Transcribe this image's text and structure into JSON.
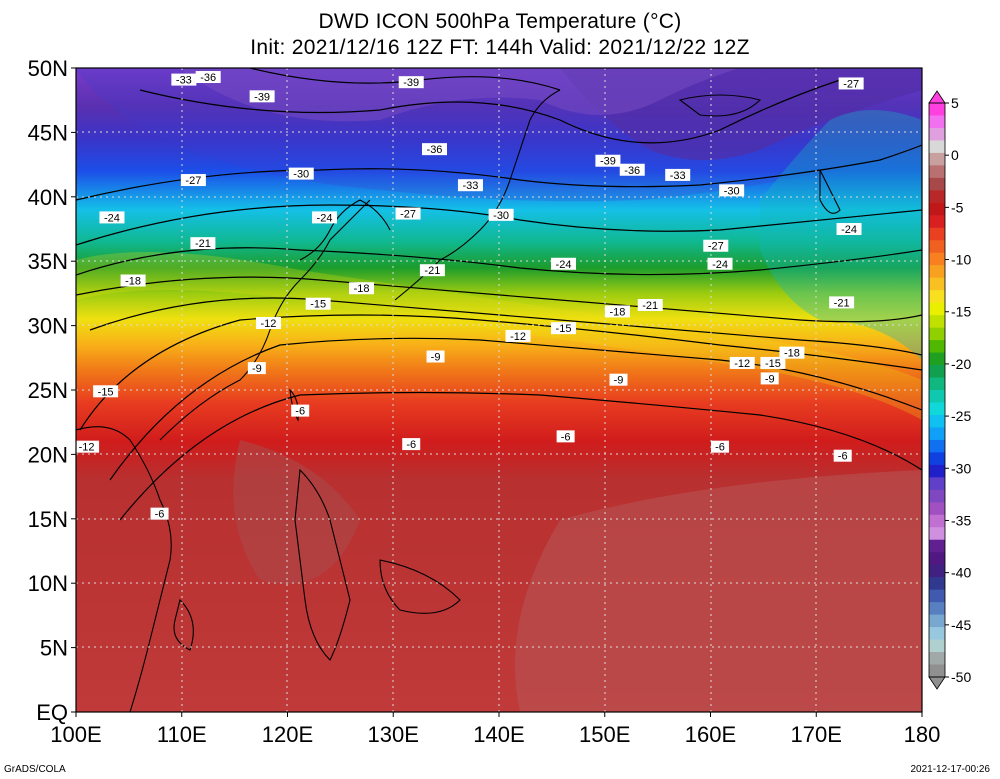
{
  "title": {
    "line1": "DWD ICON 500hPa Temperature (°C)",
    "line2": "Init: 2021/12/16 12Z  FT: 144h  Valid: 2021/12/22 12Z"
  },
  "footer": {
    "left": "GrADS/COLA",
    "right": "2021-12-17-00:26"
  },
  "axes": {
    "lat_labels": [
      "EQ",
      "5N",
      "10N",
      "15N",
      "20N",
      "25N",
      "30N",
      "35N",
      "40N",
      "45N",
      "50N"
    ],
    "lon_labels": [
      "100E",
      "110E",
      "120E",
      "130E",
      "140E",
      "150E",
      "160E",
      "170E",
      "180"
    ]
  },
  "colorbar": {
    "labels": [
      "5",
      "0",
      "-5",
      "-10",
      "-15",
      "-20",
      "-25",
      "-30",
      "-35",
      "-40",
      "-45",
      "-50"
    ],
    "colors": [
      "#ff40e0",
      "#f070f0",
      "#e0a0e0",
      "#d8d8d8",
      "#c8a0a0",
      "#b87070",
      "#a84848",
      "#b82828",
      "#c01818",
      "#d82020",
      "#e84020",
      "#f06020",
      "#f88020",
      "#f8a020",
      "#f8c020",
      "#f8e020",
      "#e8f000",
      "#c0e000",
      "#90d000",
      "#50b800",
      "#20a020",
      "#10a050",
      "#10b880",
      "#10c8b0",
      "#10d8d8",
      "#10c0f0",
      "#10a0f8",
      "#1070f0",
      "#1040e0",
      "#2020c8",
      "#6040c8",
      "#8048c0",
      "#a050c0",
      "#c070d0",
      "#d090e0",
      "#602090",
      "#501880",
      "#402080",
      "#303890",
      "#405ab0",
      "#5880c0",
      "#78a8d0",
      "#98c8e0",
      "#b0d0d0",
      "#a0a8a8",
      "#909090"
    ]
  },
  "contour_labels": [
    {
      "text": "-33",
      "lon": 110.2,
      "lat": 49.1
    },
    {
      "text": "-36",
      "lon": 112.5,
      "lat": 49.3
    },
    {
      "text": "-39",
      "lon": 131.7,
      "lat": 48.9
    },
    {
      "text": "-39",
      "lon": 117.6,
      "lat": 47.8
    },
    {
      "text": "-27",
      "lon": 173.3,
      "lat": 48.8
    },
    {
      "text": "-36",
      "lon": 133.9,
      "lat": 43.7
    },
    {
      "text": "-39",
      "lon": 150.3,
      "lat": 42.8
    },
    {
      "text": "-36",
      "lon": 152.6,
      "lat": 42.1
    },
    {
      "text": "-33",
      "lon": 156.9,
      "lat": 41.7
    },
    {
      "text": "-30",
      "lon": 121.3,
      "lat": 41.8
    },
    {
      "text": "-33",
      "lon": 137.3,
      "lat": 40.9
    },
    {
      "text": "-30",
      "lon": 162.0,
      "lat": 40.5
    },
    {
      "text": "-27",
      "lon": 111.1,
      "lat": 41.3
    },
    {
      "text": "-30",
      "lon": 140.2,
      "lat": 38.6
    },
    {
      "text": "-27",
      "lon": 131.4,
      "lat": 38.7
    },
    {
      "text": "-24",
      "lon": 103.4,
      "lat": 38.4
    },
    {
      "text": "-24",
      "lon": 123.5,
      "lat": 38.4
    },
    {
      "text": "-24",
      "lon": 173.1,
      "lat": 37.5
    },
    {
      "text": "-21",
      "lon": 112.0,
      "lat": 36.4
    },
    {
      "text": "-27",
      "lon": 160.5,
      "lat": 36.2
    },
    {
      "text": "-24",
      "lon": 160.9,
      "lat": 34.8
    },
    {
      "text": "-24",
      "lon": 146.1,
      "lat": 34.8
    },
    {
      "text": "-21",
      "lon": 133.7,
      "lat": 34.3
    },
    {
      "text": "-18",
      "lon": 105.4,
      "lat": 33.5
    },
    {
      "text": "-18",
      "lon": 127.0,
      "lat": 32.9
    },
    {
      "text": "-15",
      "lon": 122.9,
      "lat": 31.7
    },
    {
      "text": "-21",
      "lon": 154.3,
      "lat": 31.6
    },
    {
      "text": "-21",
      "lon": 172.4,
      "lat": 31.8
    },
    {
      "text": "-18",
      "lon": 151.2,
      "lat": 31.1
    },
    {
      "text": "-12",
      "lon": 118.2,
      "lat": 30.2
    },
    {
      "text": "-15",
      "lon": 146.1,
      "lat": 29.8
    },
    {
      "text": "-12",
      "lon": 141.8,
      "lat": 29.2
    },
    {
      "text": "-18",
      "lon": 167.7,
      "lat": 27.9
    },
    {
      "text": "-9",
      "lon": 134.0,
      "lat": 27.6
    },
    {
      "text": "-12",
      "lon": 163.0,
      "lat": 27.1
    },
    {
      "text": "-15",
      "lon": 165.9,
      "lat": 27.1
    },
    {
      "text": "-9",
      "lon": 117.1,
      "lat": 26.7
    },
    {
      "text": "-9",
      "lon": 151.3,
      "lat": 25.8
    },
    {
      "text": "-9",
      "lon": 165.6,
      "lat": 25.9
    },
    {
      "text": "-15",
      "lon": 102.8,
      "lat": 24.9
    },
    {
      "text": "-6",
      "lon": 121.2,
      "lat": 23.4
    },
    {
      "text": "-6",
      "lon": 146.3,
      "lat": 21.4
    },
    {
      "text": "-6",
      "lon": 131.7,
      "lat": 20.8
    },
    {
      "text": "-6",
      "lon": 160.9,
      "lat": 20.6
    },
    {
      "text": "-12",
      "lon": 101.0,
      "lat": 20.6
    },
    {
      "text": "-6",
      "lon": 172.5,
      "lat": 19.9
    },
    {
      "text": "-6",
      "lon": 107.9,
      "lat": 15.4
    }
  ]
}
